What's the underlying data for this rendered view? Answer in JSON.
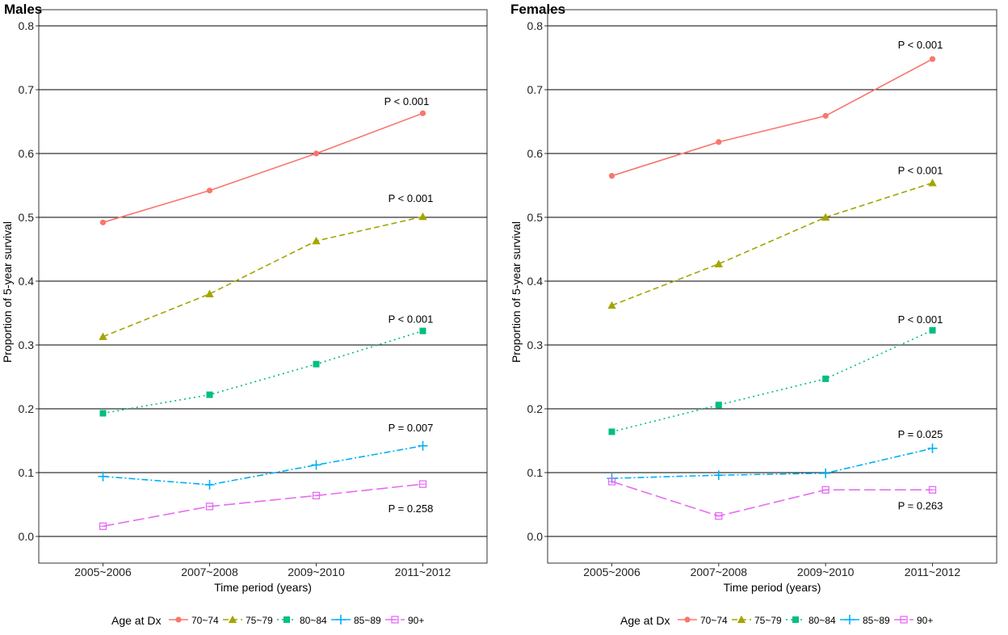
{
  "chart_data": [
    {
      "type": "line",
      "title": "Males",
      "xlabel": "Time period (years)",
      "ylabel": "Proportion of 5-year survival",
      "ylim": [
        0,
        0.8
      ],
      "yticks": [
        "0.0",
        "0.1",
        "0.2",
        "0.3",
        "0.4",
        "0.5",
        "0.6",
        "0.7",
        "0.8"
      ],
      "categories": [
        "2005~2006",
        "2007~2008",
        "2009~2010",
        "2011~2012"
      ],
      "series": [
        {
          "name": "70~74",
          "values": [
            0.492,
            0.542,
            0.6,
            0.663
          ],
          "pvalue": "P < 0.001"
        },
        {
          "name": "75~79",
          "values": [
            0.313,
            0.38,
            0.463,
            0.501
          ],
          "pvalue": "P < 0.001"
        },
        {
          "name": "80~84",
          "values": [
            0.193,
            0.222,
            0.27,
            0.322
          ],
          "pvalue": "P < 0.001"
        },
        {
          "name": "85~89",
          "values": [
            0.094,
            0.081,
            0.112,
            0.142
          ],
          "pvalue": "P = 0.007"
        },
        {
          "name": "90+",
          "values": [
            0.016,
            0.047,
            0.064,
            0.082
          ],
          "pvalue": "P = 0.258"
        }
      ]
    },
    {
      "type": "line",
      "title": "Females",
      "xlabel": "Time period (years)",
      "ylabel": "Proportion of 5-year survival",
      "ylim": [
        0,
        0.8
      ],
      "yticks": [
        "0.0",
        "0.1",
        "0.2",
        "0.3",
        "0.4",
        "0.5",
        "0.6",
        "0.7",
        "0.8"
      ],
      "categories": [
        "2005~2006",
        "2007~2008",
        "2009~2010",
        "2011~2012"
      ],
      "series": [
        {
          "name": "70~74",
          "values": [
            0.565,
            0.618,
            0.659,
            0.748
          ],
          "pvalue": "P < 0.001"
        },
        {
          "name": "75~79",
          "values": [
            0.362,
            0.427,
            0.5,
            0.554
          ],
          "pvalue": "P < 0.001"
        },
        {
          "name": "80~84",
          "values": [
            0.164,
            0.206,
            0.247,
            0.323
          ],
          "pvalue": "P < 0.001"
        },
        {
          "name": "85~89",
          "values": [
            0.091,
            0.096,
            0.099,
            0.138
          ],
          "pvalue": "P = 0.025"
        },
        {
          "name": "90+",
          "values": [
            0.086,
            0.032,
            0.073,
            0.073
          ],
          "pvalue": "P = 0.263"
        }
      ]
    }
  ],
  "legend": {
    "title": "Age at Dx",
    "items": [
      {
        "label": "70~74",
        "color": "#F8766D",
        "marker": "circle",
        "dash": "solid"
      },
      {
        "label": "75~79",
        "color": "#A3A500",
        "marker": "triangle",
        "dash": "dashed"
      },
      {
        "label": "80~84",
        "color": "#00BF7D",
        "marker": "square",
        "dash": "dotted"
      },
      {
        "label": "85~89",
        "color": "#00B0F6",
        "marker": "plus",
        "dash": "dotdash"
      },
      {
        "label": "90+",
        "color": "#E76BF3",
        "marker": "square-open",
        "dash": "longdash"
      }
    ]
  }
}
